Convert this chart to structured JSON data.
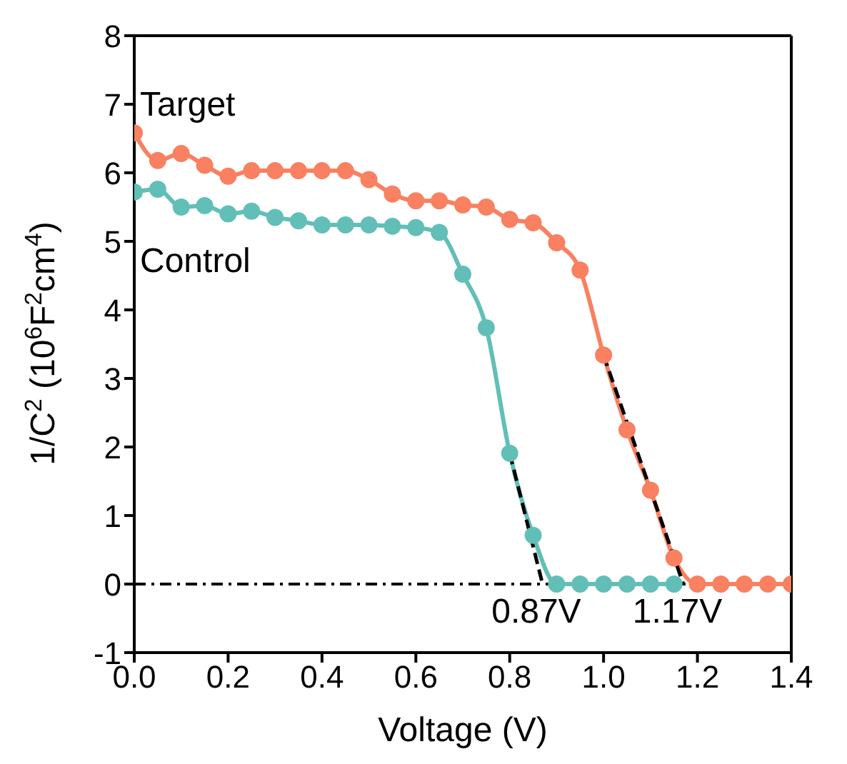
{
  "chart_data": {
    "type": "line",
    "xlabel": "Voltage (V)",
    "ylabel": "1/C$^{2}$ (10$^{6}$F$^{2}$cm$^{4}$)",
    "xlim": [
      0,
      1.4
    ],
    "xticks": [
      {
        "value": 0,
        "label": "0.0"
      },
      {
        "value": 0.2,
        "label": "0.2"
      },
      {
        "value": 0.4,
        "label": "0.4"
      },
      {
        "value": 0.6,
        "label": "0.6"
      },
      {
        "value": 0.8,
        "label": "0.8"
      },
      {
        "value": 1.0,
        "label": "1.0"
      },
      {
        "value": 1.2,
        "label": "1.2"
      },
      {
        "value": 1.4,
        "label": "1.4"
      }
    ],
    "ylim": [
      -1,
      8
    ],
    "yticks": [
      -1,
      0,
      1,
      2,
      3,
      4,
      5,
      6,
      7,
      8
    ],
    "grid": false,
    "legend": false,
    "marker": "circle",
    "line_style": "solid",
    "series": [
      {
        "name": "Target",
        "color": "#f98060",
        "x": [
          0,
          0.05,
          0.1,
          0.15,
          0.2,
          0.25,
          0.3,
          0.35,
          0.4,
          0.45,
          0.5,
          0.55,
          0.6,
          0.65,
          0.7,
          0.75,
          0.8,
          0.85,
          0.9,
          0.95,
          1.0,
          1.05,
          1.1,
          1.15,
          1.2,
          1.25,
          1.3,
          1.35,
          1.4
        ],
        "values": [
          6.58,
          6.18,
          6.28,
          6.11,
          5.95,
          6.03,
          6.03,
          6.03,
          6.03,
          6.03,
          5.9,
          5.69,
          5.59,
          5.59,
          5.53,
          5.5,
          5.32,
          5.27,
          4.98,
          4.58,
          3.34,
          2.25,
          1.37,
          0.38,
          0,
          0,
          0,
          0,
          0
        ]
      },
      {
        "name": "Control",
        "color": "#62bfb8",
        "x": [
          0,
          0.05,
          0.1,
          0.15,
          0.2,
          0.25,
          0.3,
          0.35,
          0.4,
          0.45,
          0.5,
          0.55,
          0.6,
          0.65,
          0.7,
          0.75,
          0.8,
          0.85,
          0.9,
          0.95,
          1.0,
          1.05,
          1.1,
          1.15
        ],
        "values": [
          5.72,
          5.76,
          5.5,
          5.52,
          5.4,
          5.44,
          5.35,
          5.3,
          5.24,
          5.24,
          5.24,
          5.22,
          5.2,
          5.13,
          4.52,
          3.74,
          1.91,
          0.71,
          0,
          0,
          0,
          0,
          0,
          0
        ]
      },
      {
        "type": "line",
        "color": "#000000",
        "line_style": "dashed",
        "marker": "none",
        "x": [
          0.8,
          0.87
        ],
        "values": [
          1.91,
          0
        ]
      },
      {
        "type": "line",
        "color": "#000000",
        "line_style": "dashed",
        "marker": "none",
        "x": [
          1.0,
          1.17
        ],
        "values": [
          3.34,
          0
        ]
      }
    ],
    "ref_lines": [
      {
        "axis": "y",
        "value": 0,
        "color": "#000000",
        "line_style": "dashed"
      }
    ],
    "annotations": [
      {
        "text": "0.87V",
        "x": 0.87,
        "y": 0
      },
      {
        "text": "1.17V",
        "x": 1.17,
        "y": 0
      }
    ]
  }
}
